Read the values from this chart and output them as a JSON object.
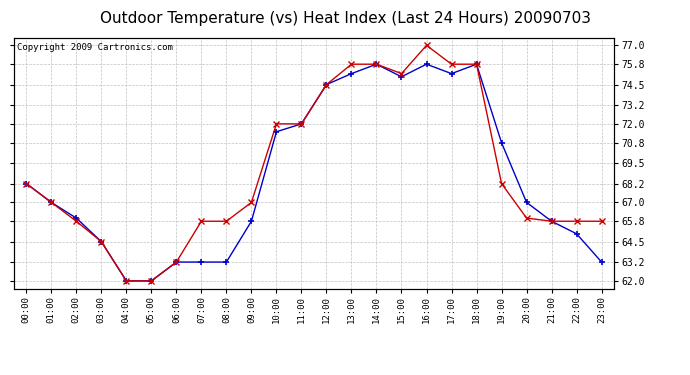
{
  "title": "Outdoor Temperature (vs) Heat Index (Last 24 Hours) 20090703",
  "copyright": "Copyright 2009 Cartronics.com",
  "x_labels": [
    "00:00",
    "01:00",
    "02:00",
    "03:00",
    "04:00",
    "05:00",
    "06:00",
    "07:00",
    "08:00",
    "09:00",
    "10:00",
    "11:00",
    "12:00",
    "13:00",
    "14:00",
    "15:00",
    "16:00",
    "17:00",
    "18:00",
    "19:00",
    "20:00",
    "21:00",
    "22:00",
    "23:00"
  ],
  "y_ticks": [
    62.0,
    63.2,
    64.5,
    65.8,
    67.0,
    68.2,
    69.5,
    70.8,
    72.0,
    73.2,
    74.5,
    75.8,
    77.0
  ],
  "ylim": [
    61.5,
    77.5
  ],
  "temp_blue": [
    68.2,
    67.0,
    66.0,
    64.5,
    62.0,
    62.0,
    63.2,
    63.2,
    63.2,
    65.8,
    71.5,
    72.0,
    74.5,
    75.2,
    75.8,
    75.0,
    75.8,
    75.2,
    75.8,
    70.8,
    67.0,
    65.8,
    65.0,
    63.2
  ],
  "heat_red": [
    68.2,
    67.0,
    65.8,
    64.5,
    62.0,
    62.0,
    63.2,
    65.8,
    65.8,
    67.0,
    72.0,
    72.0,
    74.5,
    75.8,
    75.8,
    75.2,
    77.0,
    75.8,
    75.8,
    68.2,
    66.0,
    65.8,
    65.8,
    65.8
  ],
  "line_color_blue": "#0000cc",
  "line_color_red": "#cc0000",
  "bg_color": "#ffffff",
  "plot_bg": "#ffffff",
  "grid_color": "#bbbbbb",
  "title_fontsize": 11,
  "copyright_fontsize": 6.5
}
